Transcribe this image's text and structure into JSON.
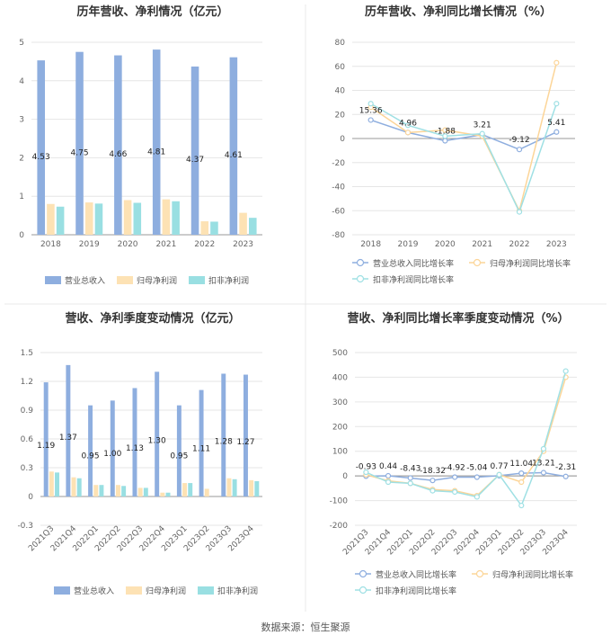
{
  "source_text": "数据来源：恒生聚源",
  "colors": {
    "revenue": "#8eaedf",
    "net_profit": "#fde2b4",
    "deducted": "#99dfe2",
    "rev_line": "#8eaedf",
    "np_line": "#fcd598",
    "ded_line": "#9fe0e4"
  },
  "chart_data": [
    {
      "id": "annual_amount",
      "type": "bar",
      "title": "历年营收、净利情况（亿元）",
      "categories": [
        "2018",
        "2019",
        "2020",
        "2021",
        "2022",
        "2023"
      ],
      "ylim": [
        0,
        5
      ],
      "yticks": [
        "0",
        "1",
        "2",
        "3",
        "4",
        "5"
      ],
      "series": [
        {
          "name": "营业总收入",
          "values": [
            4.53,
            4.75,
            4.66,
            4.81,
            4.37,
            4.61
          ],
          "labels": [
            "4.53",
            "4.75",
            "4.66",
            "4.81",
            "4.37",
            "4.61"
          ]
        },
        {
          "name": "归母净利润",
          "values": [
            0.8,
            0.84,
            0.9,
            0.92,
            0.35,
            0.57
          ]
        },
        {
          "name": "扣非净利润",
          "values": [
            0.73,
            0.81,
            0.83,
            0.87,
            0.34,
            0.44
          ]
        }
      ],
      "legend": "bottom"
    },
    {
      "id": "annual_growth",
      "type": "line",
      "title": "历年营收、净利同比增长情况（%）",
      "categories": [
        "2018",
        "2019",
        "2020",
        "2021",
        "2022",
        "2023"
      ],
      "ylim": [
        -80,
        80
      ],
      "yticks": [
        "-80",
        "-60",
        "-40",
        "-20",
        "0",
        "20",
        "40",
        "60",
        "80"
      ],
      "series": [
        {
          "name": "营业总收入同比增长率",
          "values": [
            15.36,
            4.96,
            -1.88,
            3.21,
            -9.12,
            5.41
          ],
          "labels": [
            "15.36",
            "4.96",
            "-1.88",
            "3.21",
            "-9.12",
            "5.41"
          ]
        },
        {
          "name": "归母净利润同比增长率",
          "values": [
            26,
            5,
            7,
            2,
            -60,
            63
          ]
        },
        {
          "name": "扣非净利润同比增长率",
          "values": [
            29,
            11,
            2,
            4,
            -61,
            29
          ]
        }
      ],
      "legend": "bottom"
    },
    {
      "id": "quarterly_amount",
      "type": "bar",
      "title": "营收、净利季度变动情况（亿元）",
      "categories": [
        "2021Q3",
        "2021Q4",
        "2022Q1",
        "2022Q2",
        "2022Q3",
        "2022Q4",
        "2023Q1",
        "2023Q2",
        "2023Q3",
        "2023Q4"
      ],
      "ylim": [
        -0.3,
        1.5
      ],
      "yticks": [
        "-0.3",
        "0",
        "0.3",
        "0.6",
        "0.9",
        "1.2",
        "1.5"
      ],
      "series": [
        {
          "name": "营业总收入",
          "values": [
            1.19,
            1.37,
            0.95,
            1.0,
            1.13,
            1.3,
            0.95,
            1.11,
            1.28,
            1.27
          ],
          "labels": [
            "1.19",
            "1.37",
            "0.95",
            "1.00",
            "1.13",
            "1.30",
            "0.95",
            "1.11",
            "1.28",
            "1.27"
          ]
        },
        {
          "name": "归母净利润",
          "values": [
            0.26,
            0.2,
            0.12,
            0.12,
            0.09,
            0.04,
            0.14,
            0.08,
            0.19,
            0.17
          ]
        },
        {
          "name": "扣非净利润",
          "values": [
            0.25,
            0.19,
            0.12,
            0.11,
            0.09,
            0.04,
            0.14,
            0.0,
            0.18,
            0.16
          ]
        }
      ],
      "legend": "bottom"
    },
    {
      "id": "quarterly_growth",
      "type": "line",
      "title": "营收、净利同比增长率季度变动情况（%）",
      "categories": [
        "2021Q3",
        "2021Q4",
        "2022Q1",
        "2022Q2",
        "2022Q3",
        "2022Q4",
        "2023Q1",
        "2023Q2",
        "2023Q3",
        "2023Q4"
      ],
      "ylim": [
        -200,
        500
      ],
      "yticks": [
        "-200",
        "-100",
        "0",
        "100",
        "200",
        "300",
        "400",
        "500"
      ],
      "series": [
        {
          "name": "营业总收入同比增长率",
          "values": [
            -0.93,
            0.44,
            -8.43,
            -18.32,
            -4.92,
            -5.04,
            0.77,
            11.04,
            13.21,
            -2.31
          ],
          "labels": [
            "-0.93",
            "0.44",
            "-8.43",
            "-18.32",
            "-4.92",
            "-5.04",
            "0.77",
            "11.04",
            "13.21",
            "-2.31"
          ]
        },
        {
          "name": "归母净利润同比增长率",
          "values": [
            5,
            -20,
            -30,
            -55,
            -60,
            -80,
            5,
            -25,
            100,
            400
          ]
        },
        {
          "name": "扣非净利润同比增长率",
          "values": [
            15,
            -25,
            -30,
            -60,
            -65,
            -85,
            5,
            -120,
            110,
            425
          ]
        }
      ],
      "legend": "bottom"
    }
  ]
}
